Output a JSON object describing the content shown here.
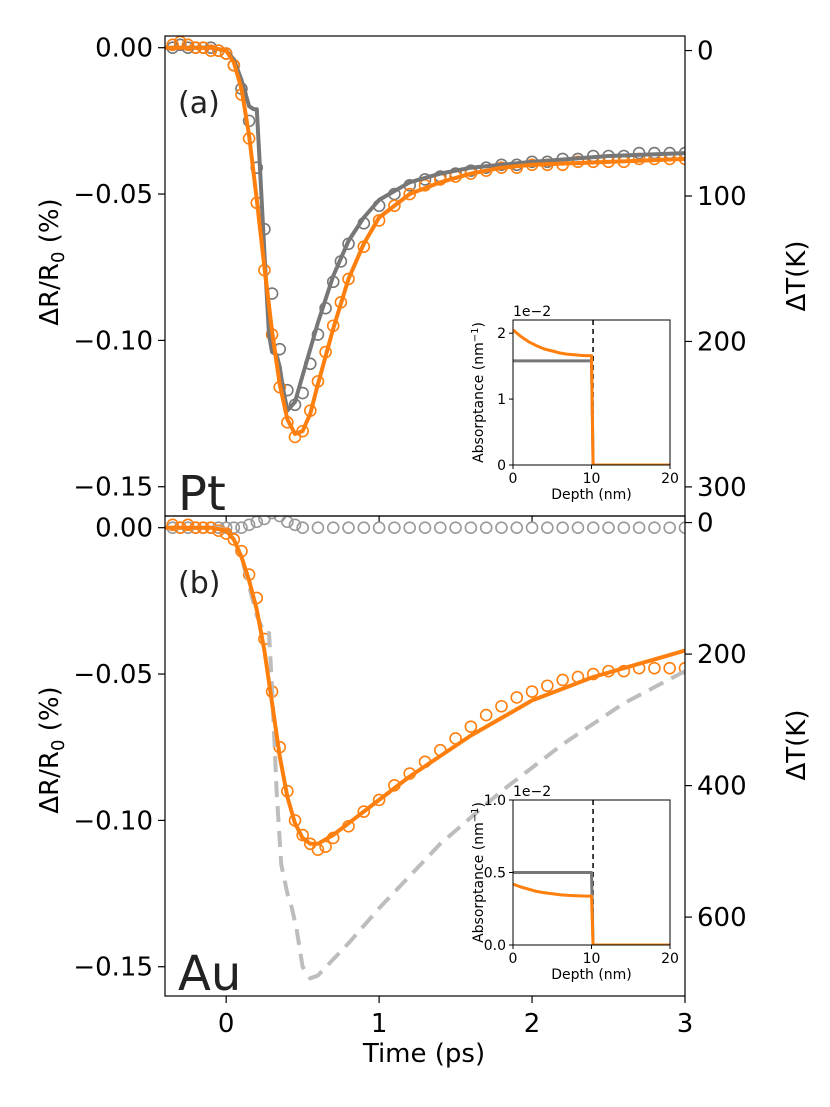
{
  "colors": {
    "orange": "#ff7f0e",
    "gray": "#777777",
    "lightgray": "#bdbdbd",
    "dark": "#222222"
  },
  "xlabel": "Time (ps)",
  "chart_data": [
    {
      "id": "pt",
      "type": "line",
      "panel_label": "(a)",
      "material": "Pt",
      "ylabel_main": "ΔR/R",
      "ylabel_sub": "0",
      "ylabel_unit": " (%)",
      "y2label": "ΔT(K)",
      "xlim": [
        -0.4,
        3.0
      ],
      "ylim": [
        -0.16,
        0.004
      ],
      "y2lim": [
        -10,
        320
      ],
      "xticks": [
        0,
        1,
        2,
        3
      ],
      "xtick_labels": [
        "0",
        "1",
        "2",
        "3"
      ],
      "yticks": [
        0.0,
        -0.05,
        -0.1,
        -0.15
      ],
      "ytick_labels": [
        "0.00",
        "−0.05",
        "−0.10",
        "−0.15"
      ],
      "y2ticks": [
        0,
        100,
        200,
        300
      ],
      "y2tick_labels": [
        "0",
        "100",
        "200",
        "300"
      ],
      "series": [
        {
          "name": "gray fit",
          "style": "line",
          "color": "#777777",
          "x": [
            -0.4,
            -0.1,
            0.0,
            0.05,
            0.1,
            0.15,
            0.18,
            0.2,
            0.22,
            0.25,
            0.28,
            0.3,
            0.33,
            0.35,
            0.37,
            0.4,
            0.45,
            0.5,
            0.6,
            0.7,
            0.8,
            0.9,
            1.0,
            1.2,
            1.4,
            1.6,
            1.8,
            2.0,
            2.5,
            3.0
          ],
          "y": [
            0.0,
            0.0,
            -0.001,
            -0.004,
            -0.011,
            -0.02,
            -0.021,
            -0.021,
            -0.04,
            -0.07,
            -0.098,
            -0.104,
            -0.105,
            -0.109,
            -0.116,
            -0.124,
            -0.121,
            -0.112,
            -0.094,
            -0.078,
            -0.066,
            -0.058,
            -0.052,
            -0.046,
            -0.043,
            -0.041,
            -0.04,
            -0.039,
            -0.037,
            -0.036
          ]
        },
        {
          "name": "orange fit",
          "style": "line",
          "color": "#ff7f0e",
          "x": [
            -0.4,
            -0.1,
            0.0,
            0.05,
            0.1,
            0.15,
            0.2,
            0.25,
            0.3,
            0.35,
            0.4,
            0.45,
            0.5,
            0.55,
            0.6,
            0.7,
            0.8,
            0.9,
            1.0,
            1.2,
            1.4,
            1.6,
            1.8,
            2.0,
            2.5,
            3.0
          ],
          "y": [
            0.0,
            0.0,
            -0.001,
            -0.005,
            -0.014,
            -0.03,
            -0.052,
            -0.075,
            -0.097,
            -0.115,
            -0.127,
            -0.132,
            -0.131,
            -0.125,
            -0.115,
            -0.096,
            -0.079,
            -0.067,
            -0.058,
            -0.05,
            -0.046,
            -0.043,
            -0.041,
            -0.04,
            -0.039,
            -0.038
          ]
        },
        {
          "name": "gray data",
          "style": "markers",
          "color": "#777777",
          "x": [
            -0.35,
            -0.3,
            -0.25,
            -0.2,
            -0.15,
            -0.1,
            -0.05,
            0.0,
            0.05,
            0.1,
            0.15,
            0.2,
            0.25,
            0.3,
            0.35,
            0.4,
            0.45,
            0.5,
            0.55,
            0.6,
            0.65,
            0.7,
            0.75,
            0.8,
            0.9,
            1.0,
            1.1,
            1.2,
            1.3,
            1.4,
            1.5,
            1.6,
            1.7,
            1.8,
            1.9,
            2.0,
            2.1,
            2.2,
            2.3,
            2.4,
            2.5,
            2.6,
            2.7,
            2.8,
            2.9,
            3.0
          ],
          "y": [
            0.0,
            0.001,
            0.0,
            0.0,
            0.0,
            0.0,
            -0.001,
            -0.002,
            -0.006,
            -0.014,
            -0.025,
            -0.041,
            -0.062,
            -0.084,
            -0.103,
            -0.117,
            -0.122,
            -0.118,
            -0.108,
            -0.098,
            -0.089,
            -0.08,
            -0.073,
            -0.067,
            -0.06,
            -0.054,
            -0.05,
            -0.047,
            -0.045,
            -0.044,
            -0.043,
            -0.042,
            -0.041,
            -0.04,
            -0.04,
            -0.039,
            -0.039,
            -0.038,
            -0.038,
            -0.037,
            -0.037,
            -0.037,
            -0.036,
            -0.036,
            -0.036,
            -0.036
          ]
        },
        {
          "name": "orange data",
          "style": "markers",
          "color": "#ff7f0e",
          "x": [
            -0.35,
            -0.3,
            -0.25,
            -0.2,
            -0.15,
            -0.1,
            -0.05,
            0.0,
            0.05,
            0.1,
            0.15,
            0.2,
            0.25,
            0.3,
            0.35,
            0.4,
            0.45,
            0.5,
            0.55,
            0.6,
            0.65,
            0.7,
            0.75,
            0.8,
            0.9,
            1.0,
            1.1,
            1.2,
            1.3,
            1.4,
            1.5,
            1.6,
            1.7,
            1.8,
            1.9,
            2.0,
            2.1,
            2.2,
            2.3,
            2.4,
            2.5,
            2.6,
            2.7,
            2.8,
            2.9,
            3.0
          ],
          "y": [
            0.001,
            0.002,
            0.001,
            0.0,
            0.0,
            -0.001,
            -0.001,
            -0.002,
            -0.006,
            -0.016,
            -0.031,
            -0.053,
            -0.076,
            -0.098,
            -0.116,
            -0.128,
            -0.133,
            -0.131,
            -0.124,
            -0.114,
            -0.104,
            -0.095,
            -0.087,
            -0.079,
            -0.068,
            -0.059,
            -0.054,
            -0.05,
            -0.047,
            -0.045,
            -0.044,
            -0.043,
            -0.042,
            -0.041,
            -0.041,
            -0.04,
            -0.04,
            -0.04,
            -0.039,
            -0.039,
            -0.039,
            -0.039,
            -0.038,
            -0.038,
            -0.038,
            -0.038
          ]
        }
      ],
      "inset": {
        "exponent_label": "1e−2",
        "xlabel": "Depth (nm)",
        "ylabel": "Absorptance (nm",
        "ylabel_sup": "−1",
        "ylabel_end": ")",
        "xlim": [
          0,
          20
        ],
        "ylim": [
          0,
          2.2
        ],
        "xticks": [
          0,
          10,
          20
        ],
        "xtick_labels": [
          "0",
          "10",
          "20"
        ],
        "yticks": [
          0,
          1,
          2
        ],
        "ytick_labels": [
          "0",
          "1",
          "2"
        ],
        "vline": 10.2,
        "series": [
          {
            "name": "gray",
            "color": "#777777",
            "x": [
              0,
              10,
              10.2,
              20
            ],
            "y": [
              1.58,
              1.58,
              0,
              0
            ]
          },
          {
            "name": "orange",
            "color": "#ff7f0e",
            "x": [
              0,
              1,
              2,
              3,
              4,
              5,
              6,
              7,
              8,
              9,
              10,
              10.2,
              20
            ],
            "y": [
              2.05,
              1.95,
              1.87,
              1.81,
              1.76,
              1.73,
              1.7,
              1.68,
              1.67,
              1.66,
              1.66,
              0,
              0
            ]
          }
        ]
      }
    },
    {
      "id": "au",
      "type": "line",
      "panel_label": "(b)",
      "material": "Au",
      "ylabel_main": "ΔR/R",
      "ylabel_sub": "0",
      "ylabel_unit": " (%)",
      "y2label": "ΔT(K)",
      "xlim": [
        -0.4,
        3.0
      ],
      "ylim": [
        -0.16,
        0.004
      ],
      "y2lim": [
        -10,
        720
      ],
      "xticks": [
        0,
        1,
        2,
        3
      ],
      "xtick_labels": [
        "0",
        "1",
        "2",
        "3"
      ],
      "yticks": [
        0.0,
        -0.05,
        -0.1,
        -0.15
      ],
      "ytick_labels": [
        "0.00",
        "−0.05",
        "−0.10",
        "−0.15"
      ],
      "y2ticks": [
        0,
        200,
        400,
        600
      ],
      "y2tick_labels": [
        "0",
        "200",
        "400",
        "600"
      ],
      "series": [
        {
          "name": "temperature (dashed)",
          "style": "dashed",
          "color": "#bdbdbd",
          "x": [
            -0.4,
            -0.05,
            0.0,
            0.05,
            0.1,
            0.15,
            0.2,
            0.25,
            0.28,
            0.3,
            0.33,
            0.36,
            0.4,
            0.43,
            0.46,
            0.5,
            0.55,
            0.6,
            0.8,
            1.0,
            1.4,
            1.8,
            2.2,
            2.6,
            3.0
          ],
          "y": [
            0.0,
            0.0,
            -0.001,
            -0.004,
            -0.01,
            -0.02,
            -0.03,
            -0.036,
            -0.036,
            -0.055,
            -0.09,
            -0.115,
            -0.125,
            -0.13,
            -0.137,
            -0.15,
            -0.154,
            -0.153,
            -0.142,
            -0.13,
            -0.108,
            -0.09,
            -0.074,
            -0.06,
            -0.049
          ]
        },
        {
          "name": "orange fit",
          "style": "line",
          "color": "#ff7f0e",
          "x": [
            -0.4,
            -0.1,
            0.0,
            0.05,
            0.1,
            0.15,
            0.2,
            0.25,
            0.3,
            0.35,
            0.4,
            0.45,
            0.5,
            0.55,
            0.6,
            0.7,
            0.8,
            1.0,
            1.2,
            1.4,
            1.6,
            1.8,
            2.0,
            2.2,
            2.4,
            2.6,
            2.8,
            3.0
          ],
          "y": [
            0.0,
            0.0,
            -0.001,
            -0.004,
            -0.01,
            -0.018,
            -0.028,
            -0.042,
            -0.06,
            -0.078,
            -0.092,
            -0.101,
            -0.106,
            -0.108,
            -0.108,
            -0.105,
            -0.101,
            -0.093,
            -0.085,
            -0.078,
            -0.071,
            -0.065,
            -0.059,
            -0.055,
            -0.051,
            -0.048,
            -0.045,
            -0.042
          ]
        },
        {
          "name": "gray data",
          "style": "markers",
          "color": "#999999",
          "x": [
            -0.35,
            -0.3,
            -0.25,
            -0.2,
            -0.15,
            -0.1,
            -0.05,
            0.0,
            0.05,
            0.1,
            0.15,
            0.2,
            0.25,
            0.3,
            0.35,
            0.4,
            0.45,
            0.5,
            0.6,
            0.7,
            0.8,
            0.9,
            1.0,
            1.1,
            1.2,
            1.3,
            1.4,
            1.5,
            1.6,
            1.7,
            1.8,
            1.9,
            2.0,
            2.1,
            2.2,
            2.3,
            2.4,
            2.5,
            2.6,
            2.7,
            2.8,
            2.9,
            3.0
          ],
          "y": [
            0.0,
            0.0,
            0.0,
            0.0,
            0.0,
            0.0,
            0.0,
            0.0,
            0.0,
            0.0,
            0.001,
            0.002,
            0.003,
            0.005,
            0.004,
            0.002,
            0.001,
            0.0,
            0.0,
            0.0,
            0.0,
            0.0,
            0.0,
            0.0,
            0.0,
            0.0,
            0.0,
            0.0,
            0.0,
            0.0,
            0.0,
            0.0,
            0.0,
            0.0,
            0.0,
            0.0,
            0.0,
            0.0,
            0.0,
            0.0,
            0.0,
            0.0,
            0.0
          ]
        },
        {
          "name": "orange data",
          "style": "markers",
          "color": "#ff7f0e",
          "x": [
            -0.35,
            -0.3,
            -0.25,
            -0.2,
            -0.15,
            -0.1,
            -0.05,
            0.0,
            0.05,
            0.1,
            0.15,
            0.2,
            0.25,
            0.3,
            0.35,
            0.4,
            0.45,
            0.5,
            0.55,
            0.6,
            0.65,
            0.7,
            0.8,
            0.9,
            1.0,
            1.1,
            1.2,
            1.3,
            1.4,
            1.5,
            1.6,
            1.7,
            1.8,
            1.9,
            2.0,
            2.1,
            2.2,
            2.3,
            2.4,
            2.5,
            2.6,
            2.7,
            2.8,
            2.9,
            3.0
          ],
          "y": [
            0.001,
            0.0,
            0.001,
            0.0,
            0.0,
            0.0,
            -0.001,
            -0.002,
            -0.004,
            -0.008,
            -0.016,
            -0.024,
            -0.038,
            -0.056,
            -0.075,
            -0.09,
            -0.1,
            -0.105,
            -0.108,
            -0.11,
            -0.109,
            -0.106,
            -0.102,
            -0.097,
            -0.093,
            -0.088,
            -0.084,
            -0.08,
            -0.076,
            -0.072,
            -0.068,
            -0.064,
            -0.061,
            -0.058,
            -0.056,
            -0.054,
            -0.052,
            -0.051,
            -0.05,
            -0.049,
            -0.049,
            -0.048,
            -0.048,
            -0.048,
            -0.048
          ]
        }
      ],
      "inset": {
        "exponent_label": "1e−2",
        "xlabel": "Depth (nm)",
        "ylabel": "Absorptance (nm",
        "ylabel_sup": "−1",
        "ylabel_end": ")",
        "xlim": [
          0,
          20
        ],
        "ylim": [
          0,
          1.0
        ],
        "xticks": [
          0,
          10,
          20
        ],
        "xtick_labels": [
          "0",
          "10",
          "20"
        ],
        "yticks": [
          0,
          0.5,
          1.0
        ],
        "ytick_labels": [
          "0.0",
          "0.5",
          "1.0"
        ],
        "vline": 10.2,
        "series": [
          {
            "name": "gray",
            "color": "#777777",
            "x": [
              0,
              10,
              10.2,
              20
            ],
            "y": [
              0.5,
              0.5,
              0,
              0
            ]
          },
          {
            "name": "orange",
            "color": "#ff7f0e",
            "x": [
              0,
              1,
              2,
              3,
              4,
              5,
              6,
              7,
              8,
              9,
              10,
              10.2,
              20
            ],
            "y": [
              0.42,
              0.4,
              0.385,
              0.37,
              0.36,
              0.353,
              0.347,
              0.342,
              0.34,
              0.338,
              0.337,
              0,
              0
            ]
          }
        ]
      }
    }
  ]
}
